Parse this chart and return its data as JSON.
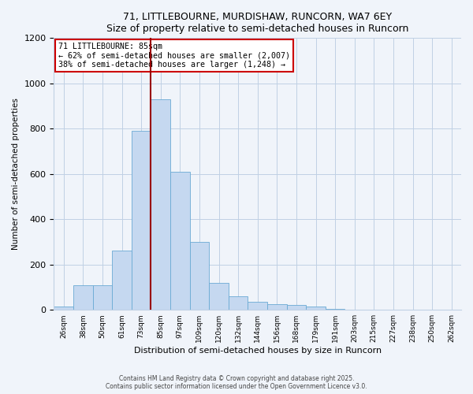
{
  "title": "71, LITTLEBOURNE, MURDISHAW, RUNCORN, WA7 6EY",
  "subtitle": "Size of property relative to semi-detached houses in Runcorn",
  "xlabel": "Distribution of semi-detached houses by size in Runcorn",
  "ylabel": "Number of semi-detached properties",
  "bin_labels": [
    "26sqm",
    "38sqm",
    "50sqm",
    "61sqm",
    "73sqm",
    "85sqm",
    "97sqm",
    "109sqm",
    "120sqm",
    "132sqm",
    "144sqm",
    "156sqm",
    "168sqm",
    "179sqm",
    "191sqm",
    "203sqm",
    "215sqm",
    "227sqm",
    "238sqm",
    "250sqm",
    "262sqm"
  ],
  "bar_values": [
    15,
    110,
    110,
    260,
    790,
    930,
    610,
    300,
    120,
    60,
    35,
    25,
    20,
    15,
    5,
    2,
    1,
    1,
    1,
    1,
    1
  ],
  "bar_color": "#c5d8f0",
  "bar_edge_color": "#6aaad4",
  "vline_index": 5,
  "vline_color": "#990000",
  "annotation_title": "71 LITTLEBOURNE: 85sqm",
  "annotation_line1": "← 62% of semi-detached houses are smaller (2,007)",
  "annotation_line2": "38% of semi-detached houses are larger (1,248) →",
  "annotation_box_color": "#ffffff",
  "annotation_box_edge": "#cc0000",
  "ylim": [
    0,
    1200
  ],
  "yticks": [
    0,
    200,
    400,
    600,
    800,
    1000,
    1200
  ],
  "footer1": "Contains HM Land Registry data © Crown copyright and database right 2025.",
  "footer2": "Contains public sector information licensed under the Open Government Licence v3.0.",
  "bg_color": "#f0f4fa",
  "grid_color": "#c0d0e4"
}
